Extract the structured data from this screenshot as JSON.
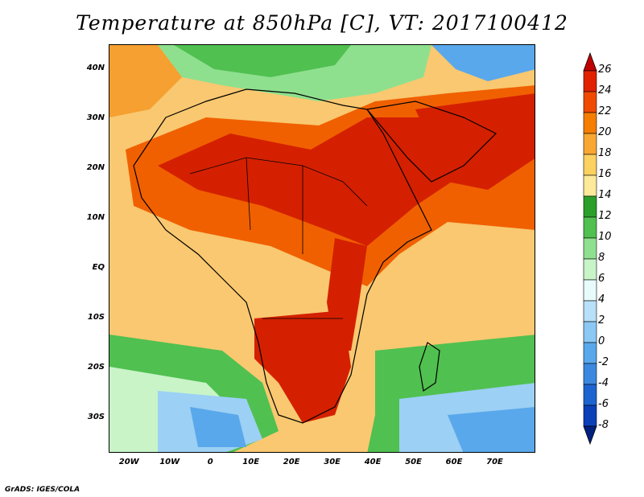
{
  "title": "Temperature at 850hPa [C], VT: 2017100412",
  "credit": "GrADS: IGES/COLA",
  "map": {
    "lon_range": [
      -25,
      80
    ],
    "lat_range": [
      -37,
      45
    ],
    "lat_ticks": [
      {
        "value": 40,
        "label": "40N"
      },
      {
        "value": 30,
        "label": "30N"
      },
      {
        "value": 20,
        "label": "20N"
      },
      {
        "value": 10,
        "label": "10N"
      },
      {
        "value": 0,
        "label": "EQ"
      },
      {
        "value": -10,
        "label": "10S"
      },
      {
        "value": -20,
        "label": "20S"
      },
      {
        "value": -30,
        "label": "30S"
      }
    ],
    "lon_ticks": [
      {
        "value": -20,
        "label": "20W"
      },
      {
        "value": -10,
        "label": "10W"
      },
      {
        "value": 0,
        "label": "0"
      },
      {
        "value": 10,
        "label": "10E"
      },
      {
        "value": 20,
        "label": "20E"
      },
      {
        "value": 30,
        "label": "30E"
      },
      {
        "value": 40,
        "label": "40E"
      },
      {
        "value": 50,
        "label": "50E"
      },
      {
        "value": 60,
        "label": "60E"
      },
      {
        "value": 70,
        "label": "70E"
      }
    ]
  },
  "colorbar": {
    "levels": [
      "26",
      "24",
      "22",
      "20",
      "18",
      "16",
      "14",
      "12",
      "10",
      "8",
      "6",
      "4",
      "2",
      "0",
      "-2",
      "-4",
      "-6",
      "-8"
    ],
    "colors": [
      "#c00000",
      "#e02200",
      "#f04a00",
      "#f57e00",
      "#f8a830",
      "#fbd160",
      "#fde99a",
      "#2aa02a",
      "#50c050",
      "#8ee08e",
      "#c8f4c8",
      "#e8fbfb",
      "#b8e0f8",
      "#8cc8f4",
      "#5aa8ec",
      "#3c88e0",
      "#1e64d0",
      "#0c40b8",
      "#002080"
    ]
  },
  "field_colors": {
    "hot": "#d42000",
    "warm": "#f06000",
    "orange": "#f5a030",
    "tan": "#f9c870",
    "pale": "#fde99a",
    "green": "#50c050",
    "lightgreen": "#8ee08e",
    "mint": "#c8f4c8",
    "lightblue": "#9cd0f4",
    "blue": "#5aa8ec"
  }
}
